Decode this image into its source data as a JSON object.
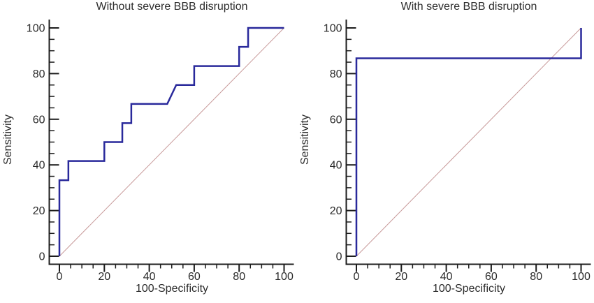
{
  "colors": {
    "background": "#ffffff",
    "axis": "#1c1c1c",
    "text": "#2d2d2d",
    "curve": "#29299b",
    "reference": "#c89a9a"
  },
  "chart_data": [
    {
      "type": "line",
      "title": "Without severe BBB disruption",
      "xlabel": "100-Specificity",
      "ylabel": "Sensitivity",
      "xlim": [
        0,
        100
      ],
      "ylim": [
        0,
        100
      ],
      "x_ticks": [
        0,
        20,
        40,
        60,
        80,
        100
      ],
      "y_ticks": [
        0,
        20,
        40,
        60,
        80,
        100
      ],
      "minor_tick_step": 5,
      "grid": false,
      "legend": "none",
      "series": [
        {
          "name": "ROC curve",
          "role": "curve",
          "color": "#29299b",
          "points": [
            [
              0,
              0
            ],
            [
              0,
              33.3
            ],
            [
              4,
              33.3
            ],
            [
              4,
              41.7
            ],
            [
              20,
              41.7
            ],
            [
              20,
              50
            ],
            [
              28,
              50
            ],
            [
              28,
              58.3
            ],
            [
              32,
              58.3
            ],
            [
              32,
              66.7
            ],
            [
              48,
              66.7
            ],
            [
              52,
              75
            ],
            [
              60,
              75
            ],
            [
              60,
              83.3
            ],
            [
              80,
              83.3
            ],
            [
              80,
              91.7
            ],
            [
              84,
              91.7
            ],
            [
              84,
              100
            ],
            [
              100,
              100
            ]
          ]
        },
        {
          "name": "Reference diagonal",
          "role": "reference",
          "color": "#c89a9a",
          "points": [
            [
              0,
              0
            ],
            [
              100,
              100
            ]
          ]
        }
      ]
    },
    {
      "type": "line",
      "title": "With severe BBB disruption",
      "xlabel": "100-Specificity",
      "ylabel": "Sensitivity",
      "xlim": [
        0,
        100
      ],
      "ylim": [
        0,
        100
      ],
      "x_ticks": [
        0,
        20,
        40,
        60,
        80,
        100
      ],
      "y_ticks": [
        0,
        20,
        40,
        60,
        80,
        100
      ],
      "minor_tick_step": 5,
      "grid": false,
      "legend": "none",
      "series": [
        {
          "name": "ROC curve",
          "role": "curve",
          "color": "#29299b",
          "points": [
            [
              0,
              0
            ],
            [
              0,
              86.7
            ],
            [
              100,
              86.7
            ],
            [
              100,
              100
            ]
          ]
        },
        {
          "name": "Reference diagonal",
          "role": "reference",
          "color": "#c89a9a",
          "points": [
            [
              0,
              0
            ],
            [
              100,
              100
            ]
          ]
        }
      ]
    }
  ]
}
